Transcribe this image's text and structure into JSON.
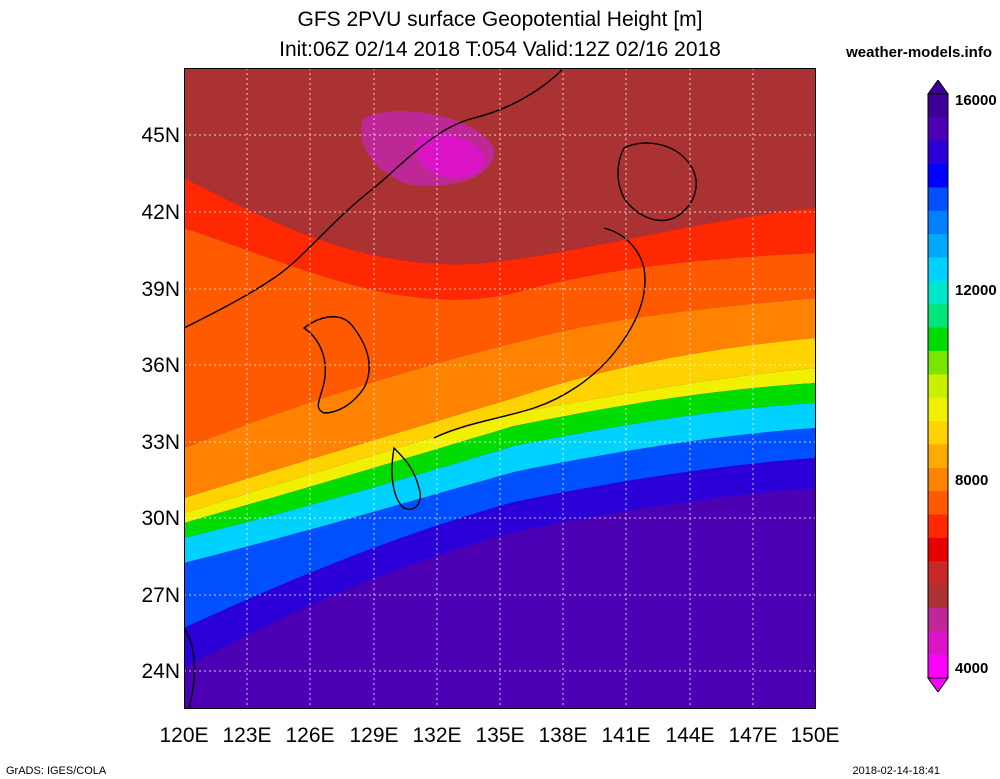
{
  "header": {
    "title_line1": "GFS 2PVU surface Geopotential Height [m]",
    "title_line2": "Init:06Z 02/14 2018 T:054 Valid:12Z 02/16 2018",
    "brand": "weather-models.info"
  },
  "footer": {
    "left": "GrADS: IGES/COLA",
    "right": "2018-02-14-18:41"
  },
  "axes": {
    "lat_labels": [
      "45N",
      "42N",
      "39N",
      "36N",
      "33N",
      "30N",
      "27N",
      "24N"
    ],
    "lon_labels": [
      "120E",
      "123E",
      "126E",
      "129E",
      "132E",
      "135E",
      "138E",
      "141E",
      "144E",
      "147E",
      "150E"
    ]
  },
  "colorbar": {
    "labels": [
      "16000",
      "12000",
      "8000",
      "4000"
    ],
    "colors_top_to_bottom": [
      "#3d0096",
      "#4b00b4",
      "#2b00d8",
      "#0000ff",
      "#0050ff",
      "#0080ff",
      "#00a8ff",
      "#00d2ff",
      "#00e6c8",
      "#00e678",
      "#00dc00",
      "#78e600",
      "#c8f000",
      "#f0f000",
      "#ffd200",
      "#ffaa00",
      "#ff8200",
      "#ff5a00",
      "#ff2800",
      "#e60000",
      "#c82828",
      "#aa3232",
      "#be2896",
      "#dc14c8",
      "#ff00ff"
    ]
  }
}
